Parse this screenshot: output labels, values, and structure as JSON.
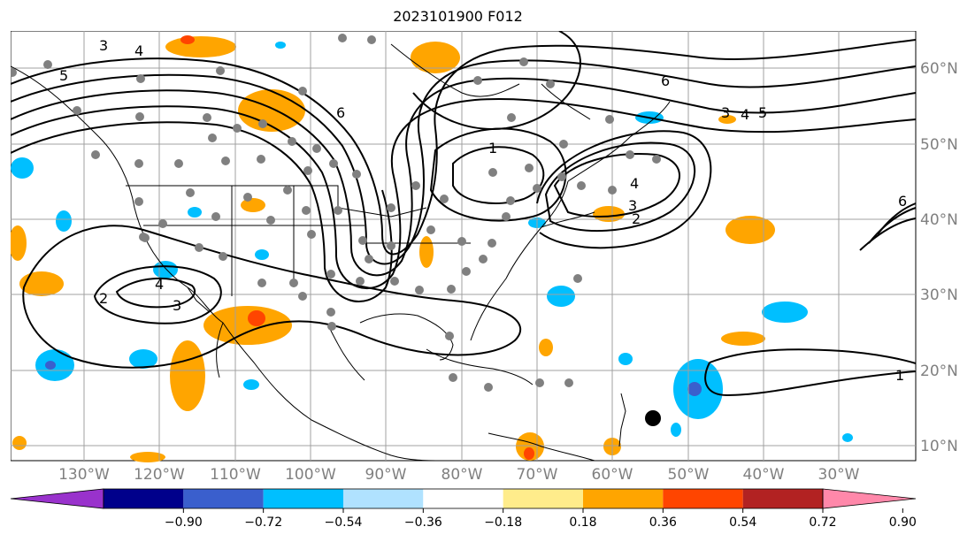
{
  "title": "2023101900 F012",
  "lon_labels": [
    "130°W",
    "120°W",
    "110°W",
    "100°W",
    "90°W",
    "80°W",
    "70°W",
    "60°W",
    "50°W",
    "40°W",
    "30°W"
  ],
  "lat_labels": [
    "60°N",
    "50°N",
    "40°N",
    "30°N",
    "20°N",
    "10°N"
  ],
  "contour_labels": [
    "3",
    "4",
    "5",
    "6",
    "1",
    "2"
  ],
  "colorbar": {
    "ticks": [
      "−0.90",
      "−0.72",
      "−0.54",
      "−0.36",
      "−0.18",
      "0.18",
      "0.36",
      "0.54",
      "0.72",
      "0.90"
    ],
    "colors": [
      "#9932cc",
      "#00008b",
      "#3a5fcd",
      "#00bfff",
      "#b0e2ff",
      "#ffffff",
      "#ffec8b",
      "#ffa500",
      "#ff4500",
      "#b22222",
      "#ff88aa"
    ]
  },
  "colors": {
    "gridline": "#a0a0a0",
    "contour": "#000000",
    "station_dot": "#808080"
  }
}
